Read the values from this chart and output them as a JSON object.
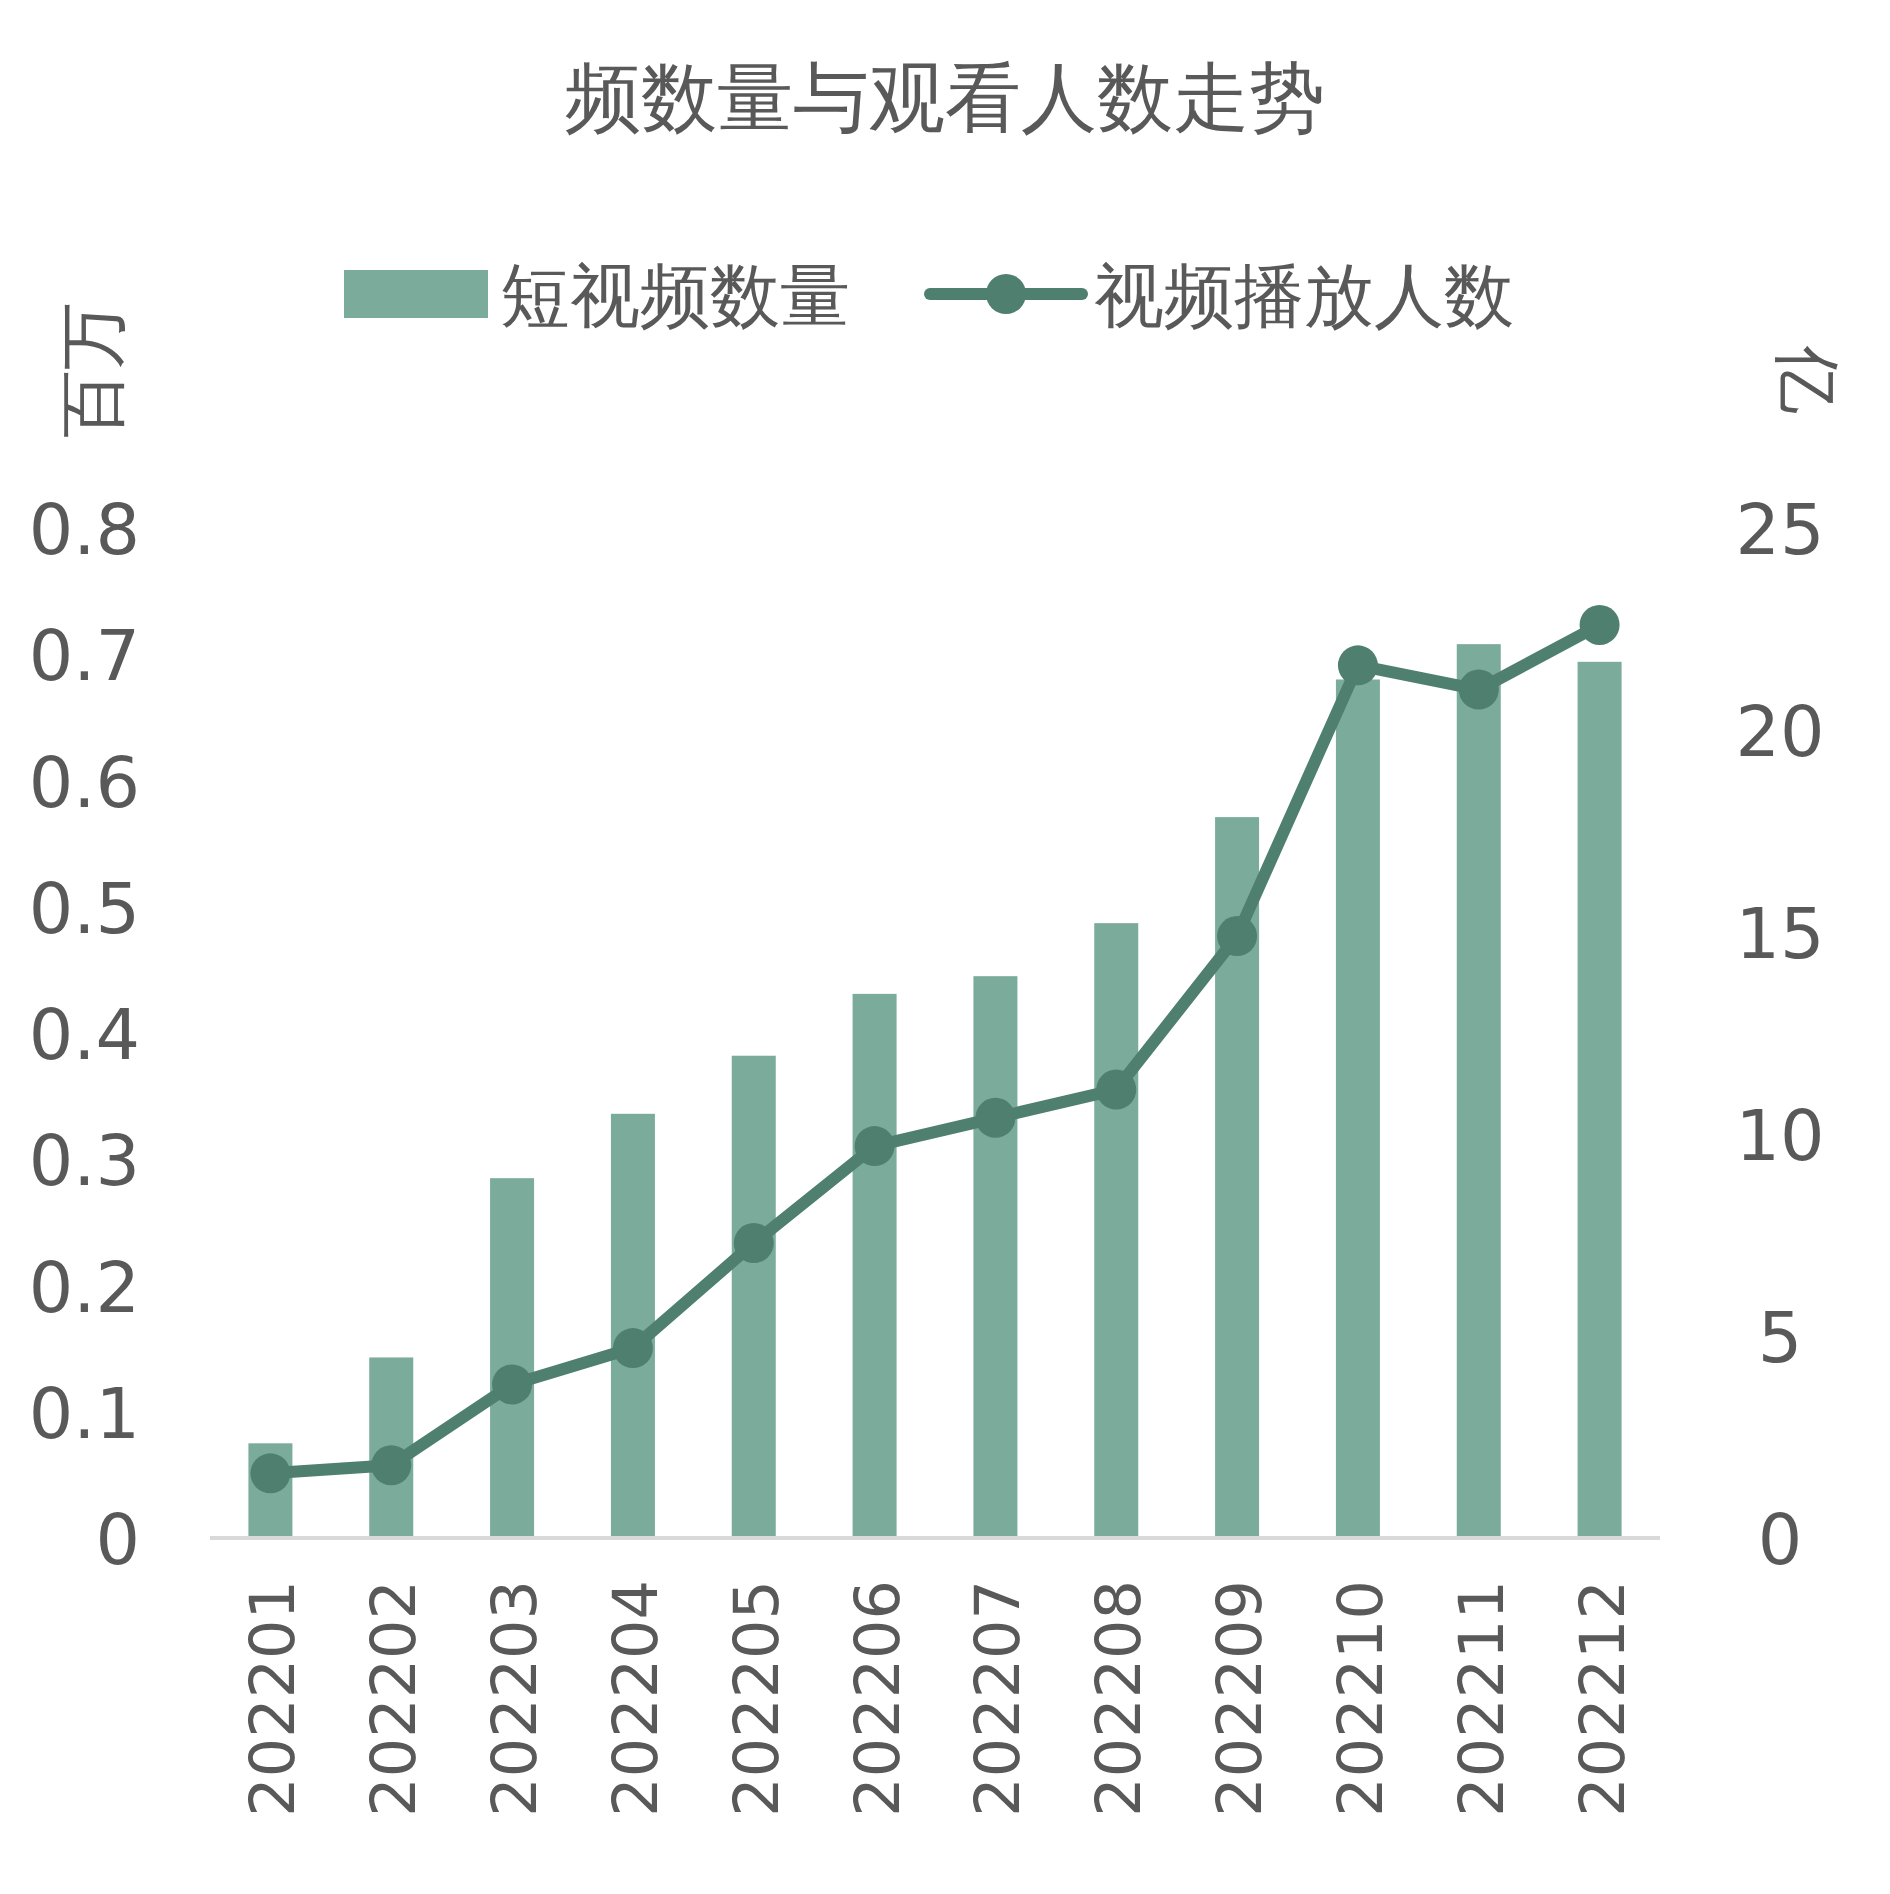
{
  "chart_data": {
    "type": "bar",
    "title": "频数量与观看人数走势",
    "ylabel": "百万",
    "y2label": "亿",
    "categories": [
      "202201",
      "202202",
      "202203",
      "202204",
      "202205",
      "202206",
      "202207",
      "202208",
      "202209",
      "202210",
      "202211",
      "202212"
    ],
    "series": [
      {
        "name": "短视频数量",
        "color": "#7aab9b",
        "values": [
          0.075,
          0.143,
          0.285,
          0.336,
          0.382,
          0.431,
          0.445,
          0.487,
          0.571,
          0.68,
          0.708,
          0.694
        ]
      },
      {
        "name": "视频播放人数",
        "type": "line",
        "axis": "y2",
        "color": "#4f7f6f",
        "values": [
          1.6,
          1.8,
          3.8,
          4.7,
          7.3,
          9.7,
          10.4,
          11.1,
          14.9,
          21.6,
          21.0,
          22.6
        ]
      }
    ],
    "ylim": [
      0,
      0.8
    ],
    "yticks": [
      0,
      0.1,
      0.2,
      0.3,
      0.4,
      0.5,
      0.6,
      0.7,
      0.8
    ],
    "y2lim": [
      0,
      25
    ],
    "y2ticks": [
      0,
      5,
      10,
      15,
      20,
      25
    ],
    "legend": "top",
    "grid": false,
    "marker": "circle",
    "line_style": "solid"
  }
}
